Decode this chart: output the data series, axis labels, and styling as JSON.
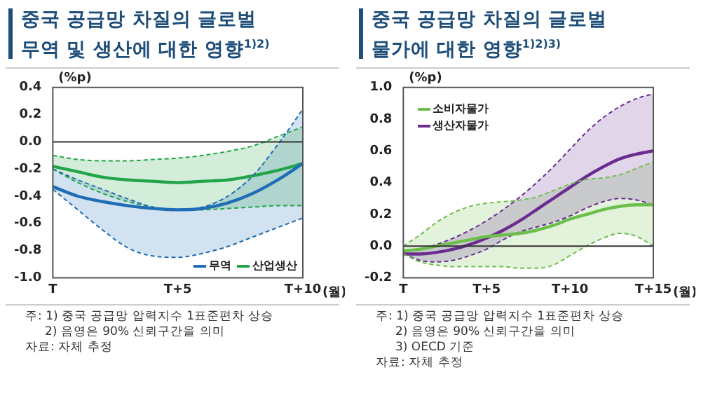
{
  "chart_data": [
    {
      "type": "line",
      "title": "중국 공급망 차질의 글로벌 무역 및 생산에 대한 영향$^{1)2)}$",
      "ylabel": "(%p)",
      "xlabel": "(월)",
      "categories": [
        "T",
        null,
        null,
        null,
        null,
        "T+5",
        null,
        null,
        null,
        null,
        "T+10"
      ],
      "ylim": [
        -1.0,
        0.4
      ],
      "yticks": [
        {
          "value": -1.0,
          "label": "-1.0"
        },
        {
          "value": -0.8,
          "label": "-0.8"
        },
        {
          "value": -0.6,
          "label": "-0.6"
        },
        {
          "value": -0.4,
          "label": "-0.4"
        },
        {
          "value": -0.2,
          "label": "-0.2"
        },
        {
          "value": 0,
          "label": "0.0"
        },
        {
          "value": 0.2,
          "label": "0.2"
        },
        {
          "value": 0.4,
          "label": "0.4"
        }
      ],
      "series": [
        {
          "name": "무역",
          "color": "#1f6db5",
          "values": [
            -0.33,
            -0.4,
            -0.44,
            -0.47,
            -0.49,
            -0.5,
            -0.49,
            -0.45,
            -0.38,
            -0.28,
            -0.16
          ],
          "lower": [
            -0.35,
            -0.5,
            -0.65,
            -0.78,
            -0.84,
            -0.85,
            -0.82,
            -0.77,
            -0.7,
            -0.63,
            -0.56
          ],
          "upper": [
            -0.2,
            -0.28,
            -0.35,
            -0.42,
            -0.48,
            -0.5,
            -0.48,
            -0.4,
            -0.25,
            -0.02,
            0.24
          ]
        },
        {
          "color": "#1f6db5",
          "line_style": "dashed",
          "values": [
            -0.35,
            -0.5,
            -0.65,
            -0.78,
            -0.84,
            -0.85,
            -0.82,
            -0.77,
            -0.7,
            -0.63,
            -0.56
          ]
        },
        {
          "color": "#1f6db5",
          "line_style": "dashed",
          "values": [
            -0.2,
            -0.28,
            -0.35,
            -0.42,
            -0.48,
            -0.5,
            -0.48,
            -0.4,
            -0.25,
            -0.02,
            0.24
          ]
        },
        {
          "name": "산업생산",
          "color": "#22a548",
          "values": [
            -0.18,
            -0.22,
            -0.26,
            -0.28,
            -0.29,
            -0.3,
            -0.29,
            -0.28,
            -0.25,
            -0.21,
            -0.16
          ],
          "lower": [
            -0.2,
            -0.3,
            -0.38,
            -0.44,
            -0.48,
            -0.5,
            -0.5,
            -0.49,
            -0.48,
            -0.47,
            -0.47
          ],
          "upper": [
            -0.1,
            -0.13,
            -0.14,
            -0.14,
            -0.13,
            -0.12,
            -0.1,
            -0.07,
            -0.03,
            0.04,
            0.11
          ]
        },
        {
          "color": "#22a548",
          "line_style": "dashed",
          "values": [
            -0.2,
            -0.3,
            -0.38,
            -0.44,
            -0.48,
            -0.5,
            -0.5,
            -0.49,
            -0.48,
            -0.47,
            -0.47
          ]
        },
        {
          "color": "#22a548",
          "line_style": "dashed",
          "values": [
            -0.1,
            -0.13,
            -0.14,
            -0.14,
            -0.13,
            -0.12,
            -0.1,
            -0.07,
            -0.03,
            0.04,
            0.11
          ]
        }
      ],
      "ref_lines": [
        {
          "axis": "y",
          "value": 0,
          "color": "#333333"
        }
      ],
      "legend": "bottom right",
      "grid": false,
      "annotations": [
        "주: 1) 중국 공급망 압력지수 1표준편차 상승",
        "2) 음영은 90% 신뢰구간을 의미",
        "자료: 자체 추정"
      ]
    },
    {
      "type": "line",
      "title": "중국 공급망 차질의 글로벌 물가에 대한 영향$^{1)2)3)}$",
      "ylabel": "(%p)",
      "xlabel": "(월)",
      "categories": [
        "T",
        null,
        null,
        null,
        null,
        "T+5",
        null,
        null,
        null,
        null,
        "T+10",
        null,
        null,
        null,
        null,
        "T+15"
      ],
      "ylim": [
        -0.2,
        1.0
      ],
      "yticks": [
        {
          "value": -0.2,
          "label": "-0.2"
        },
        {
          "value": 0,
          "label": "0.0"
        },
        {
          "value": 0.2,
          "label": "0.2"
        },
        {
          "value": 0.4,
          "label": "0.4"
        },
        {
          "value": 0.6,
          "label": "0.6"
        },
        {
          "value": 0.8,
          "label": "0.8"
        },
        {
          "value": 1.0,
          "label": "1.0"
        }
      ],
      "series": [
        {
          "name": "소비자물가",
          "color": "#6cbf4a",
          "values": [
            -0.03,
            -0.02,
            0.0,
            0.02,
            0.04,
            0.06,
            0.07,
            0.08,
            0.1,
            0.13,
            0.17,
            0.2,
            0.23,
            0.25,
            0.26,
            0.26
          ],
          "lower": [
            -0.05,
            -0.1,
            -0.12,
            -0.13,
            -0.13,
            -0.13,
            -0.13,
            -0.14,
            -0.14,
            -0.12,
            -0.06,
            0.0,
            0.05,
            0.08,
            0.06,
            0.0
          ],
          "upper": [
            0.0,
            0.07,
            0.15,
            0.21,
            0.25,
            0.27,
            0.28,
            0.29,
            0.31,
            0.35,
            0.39,
            0.42,
            0.43,
            0.45,
            0.49,
            0.53
          ]
        },
        {
          "color": "#6cbf4a",
          "line_style": "dashed",
          "values": [
            -0.05,
            -0.1,
            -0.12,
            -0.13,
            -0.13,
            -0.13,
            -0.13,
            -0.14,
            -0.14,
            -0.12,
            -0.06,
            0.0,
            0.05,
            0.08,
            0.06,
            0.0
          ]
        },
        {
          "color": "#6cbf4a",
          "line_style": "dashed",
          "values": [
            0.0,
            0.07,
            0.15,
            0.21,
            0.25,
            0.27,
            0.28,
            0.29,
            0.31,
            0.35,
            0.39,
            0.42,
            0.43,
            0.45,
            0.49,
            0.53
          ]
        },
        {
          "name": "생산자물가",
          "color": "#6a2c91",
          "values": [
            -0.05,
            -0.05,
            -0.04,
            -0.02,
            0.01,
            0.05,
            0.1,
            0.16,
            0.23,
            0.3,
            0.37,
            0.44,
            0.5,
            0.55,
            0.58,
            0.6
          ],
          "lower": [
            -0.05,
            -0.09,
            -0.1,
            -0.09,
            -0.06,
            -0.02,
            0.04,
            0.09,
            0.12,
            0.15,
            0.19,
            0.24,
            0.28,
            0.3,
            0.29,
            0.26
          ],
          "upper": [
            -0.03,
            -0.02,
            0.01,
            0.05,
            0.1,
            0.16,
            0.23,
            0.31,
            0.4,
            0.5,
            0.61,
            0.72,
            0.81,
            0.88,
            0.93,
            0.96
          ]
        },
        {
          "color": "#6a2c91",
          "line_style": "dashed",
          "values": [
            -0.05,
            -0.09,
            -0.1,
            -0.09,
            -0.06,
            -0.02,
            0.04,
            0.09,
            0.12,
            0.15,
            0.19,
            0.24,
            0.28,
            0.3,
            0.29,
            0.26
          ]
        },
        {
          "color": "#6a2c91",
          "line_style": "dashed",
          "values": [
            -0.03,
            -0.02,
            0.01,
            0.05,
            0.1,
            0.16,
            0.23,
            0.31,
            0.4,
            0.5,
            0.61,
            0.72,
            0.81,
            0.88,
            0.93,
            0.96
          ]
        }
      ],
      "ref_lines": [
        {
          "axis": "y",
          "value": 0,
          "color": "#333333"
        }
      ],
      "legend": "top left",
      "grid": false,
      "annotations": [
        "주: 1) 중국 공급망 압력지수 1표준편차 상승",
        "2) 음영은 90% 신뢰구간을 의미",
        "3) OECD 기준",
        "자료: 자체 추정"
      ]
    }
  ]
}
